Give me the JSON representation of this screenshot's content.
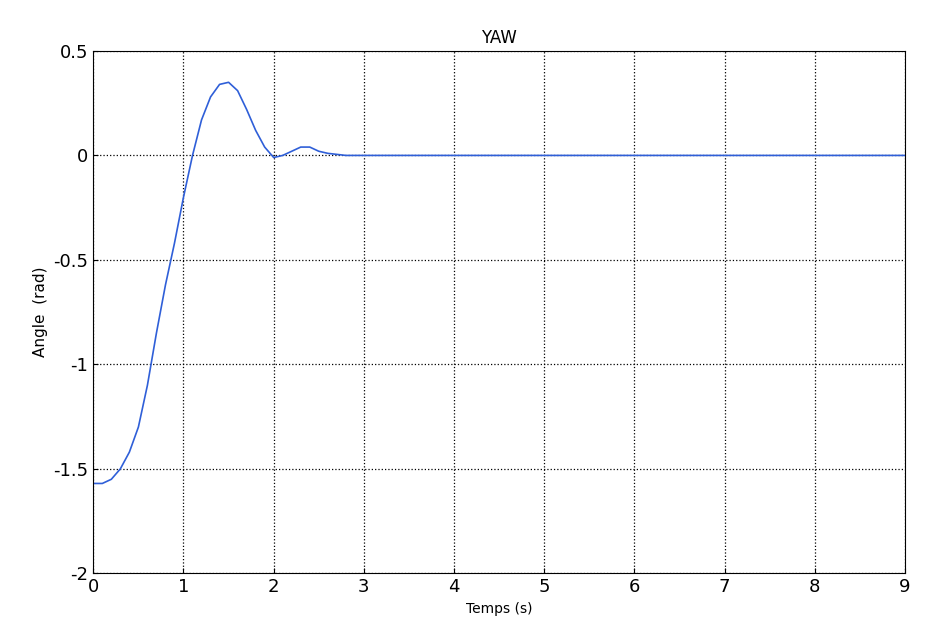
{
  "chart_data": {
    "type": "line",
    "title": "YAW",
    "x_label": "Temps (s)",
    "y_label": "Angle  (rad)",
    "x": [
      0,
      0.1,
      0.2,
      0.3,
      0.4,
      0.5,
      0.6,
      0.7,
      0.8,
      0.9,
      1.0,
      1.1,
      1.2,
      1.3,
      1.4,
      1.5,
      1.6,
      1.7,
      1.8,
      1.9,
      2.0,
      2.1,
      2.2,
      2.3,
      2.4,
      2.5,
      2.6,
      2.8,
      3,
      4,
      5,
      6,
      7,
      8,
      9
    ],
    "values": [
      -1.57,
      -1.57,
      -1.55,
      -1.5,
      -1.42,
      -1.3,
      -1.1,
      -0.85,
      -0.62,
      -0.42,
      -0.2,
      0.0,
      0.17,
      0.28,
      0.34,
      0.35,
      0.31,
      0.22,
      0.12,
      0.04,
      -0.01,
      0.0,
      0.02,
      0.04,
      0.04,
      0.02,
      0.01,
      0,
      0,
      0,
      0,
      0,
      0,
      0,
      0
    ],
    "color": "#2f5fd8",
    "xlim": [
      0,
      9
    ],
    "xticks": [
      0,
      1,
      2,
      3,
      4,
      5,
      6,
      7,
      8,
      9
    ],
    "ylim": [
      -2,
      0.5
    ],
    "yticks": [
      -2,
      -1.5,
      -1,
      -0.5,
      0,
      0.5
    ],
    "grid": true
  }
}
